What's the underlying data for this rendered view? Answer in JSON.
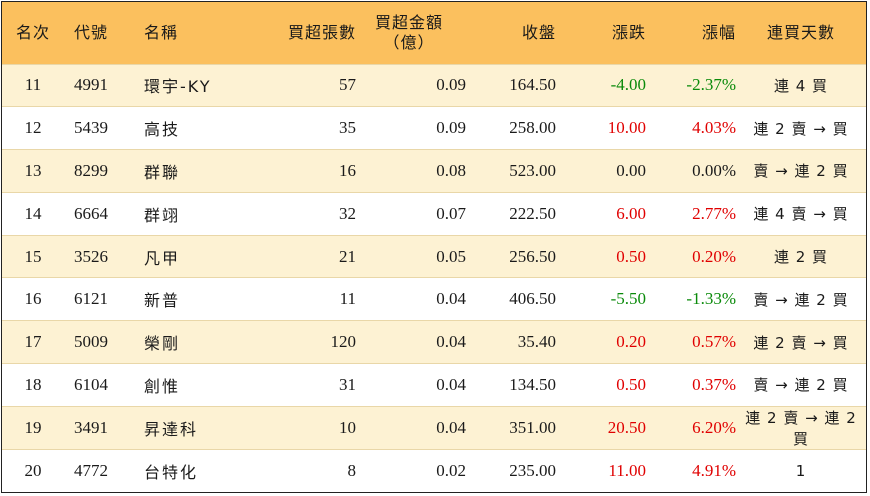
{
  "headers": [
    "名次",
    "代號",
    "名稱",
    "買超張數",
    "買超金額\n（億）",
    "收盤",
    "漲跌",
    "漲幅",
    "連買天數"
  ],
  "rows": [
    {
      "rank": "11",
      "code": "4991",
      "name": "環宇-KY",
      "shares": "57",
      "amount": "0.09",
      "close": "164.50",
      "change": "-4.00",
      "pct": "-2.37%",
      "streak": "連 4 買",
      "dir": "down"
    },
    {
      "rank": "12",
      "code": "5439",
      "name": "高技",
      "shares": "35",
      "amount": "0.09",
      "close": "258.00",
      "change": "10.00",
      "pct": "4.03%",
      "streak": "連 2 賣 → 買",
      "dir": "up"
    },
    {
      "rank": "13",
      "code": "8299",
      "name": "群聯",
      "shares": "16",
      "amount": "0.08",
      "close": "523.00",
      "change": "0.00",
      "pct": "0.00%",
      "streak": "賣 → 連 2 買",
      "dir": "flat"
    },
    {
      "rank": "14",
      "code": "6664",
      "name": "群翊",
      "shares": "32",
      "amount": "0.07",
      "close": "222.50",
      "change": "6.00",
      "pct": "2.77%",
      "streak": "連 4 賣 → 買",
      "dir": "up"
    },
    {
      "rank": "15",
      "code": "3526",
      "name": "凡甲",
      "shares": "21",
      "amount": "0.05",
      "close": "256.50",
      "change": "0.50",
      "pct": "0.20%",
      "streak": "連 2 買",
      "dir": "up"
    },
    {
      "rank": "16",
      "code": "6121",
      "name": "新普",
      "shares": "11",
      "amount": "0.04",
      "close": "406.50",
      "change": "-5.50",
      "pct": "-1.33%",
      "streak": "賣 → 連 2 買",
      "dir": "down"
    },
    {
      "rank": "17",
      "code": "5009",
      "name": "榮剛",
      "shares": "120",
      "amount": "0.04",
      "close": "35.40",
      "change": "0.20",
      "pct": "0.57%",
      "streak": "連 2 賣 → 買",
      "dir": "up"
    },
    {
      "rank": "18",
      "code": "6104",
      "name": "創惟",
      "shares": "31",
      "amount": "0.04",
      "close": "134.50",
      "change": "0.50",
      "pct": "0.37%",
      "streak": "賣 → 連 2 買",
      "dir": "up"
    },
    {
      "rank": "19",
      "code": "3491",
      "name": "昇達科",
      "shares": "10",
      "amount": "0.04",
      "close": "351.00",
      "change": "20.50",
      "pct": "6.20%",
      "streak": "連 2 賣 → 連 2 買",
      "dir": "up"
    },
    {
      "rank": "20",
      "code": "4772",
      "name": "台特化",
      "shares": "8",
      "amount": "0.02",
      "close": "235.00",
      "change": "11.00",
      "pct": "4.91%",
      "streak": "1",
      "dir": "up"
    }
  ],
  "colors": {
    "header_bg": "#fbc05e",
    "odd_row_bg": "#fdf2d3",
    "up": "#e00000",
    "down": "#0a8a0a"
  }
}
